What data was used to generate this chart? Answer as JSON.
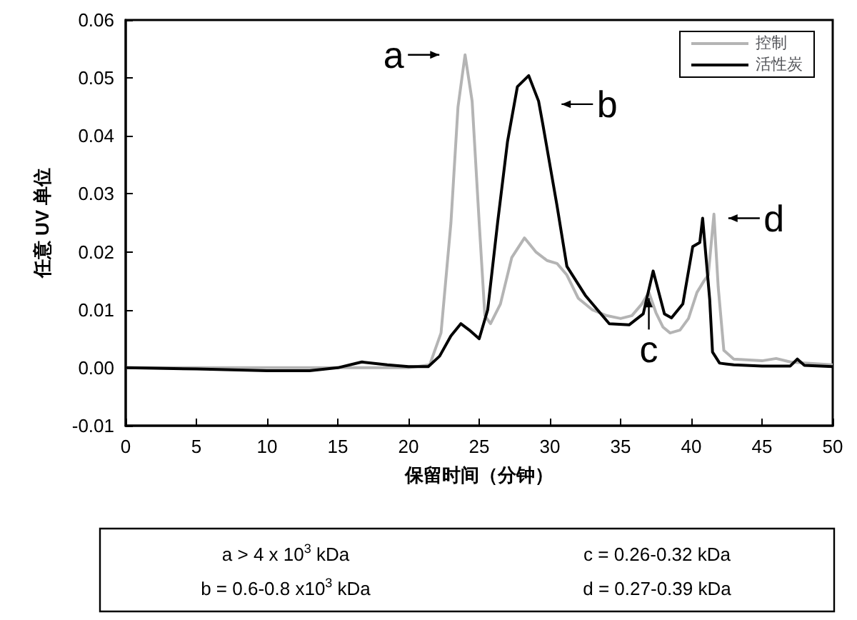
{
  "chart_data": {
    "type": "line",
    "xlabel": "保留时间（分钟）",
    "ylabel": "任意 UV 单位",
    "xlim": [
      0,
      50
    ],
    "xticks": [
      0,
      5,
      10,
      15,
      20,
      25,
      30,
      35,
      40,
      45,
      50
    ],
    "ylim": [
      -0.01,
      0.06
    ],
    "yticks": [
      {
        "value": -0.01,
        "label": "-0.01"
      },
      {
        "value": 0,
        "label": "0.00"
      },
      {
        "value": 0.01,
        "label": "0.01"
      },
      {
        "value": 0.02,
        "label": "0.02"
      },
      {
        "value": 0.03,
        "label": "0.03"
      },
      {
        "value": 0.04,
        "label": "0.04"
      },
      {
        "value": 0.05,
        "label": "0.05"
      },
      {
        "value": 0.06,
        "label": "0.06"
      }
    ],
    "grid": false,
    "legend": "top right",
    "marker": "none",
    "line_style": "solid",
    "series": [
      {
        "name": "控制",
        "color": "#b4b4b4",
        "x": [
          0,
          10,
          15,
          20,
          21.5,
          22.3,
          23,
          23.5,
          24,
          24.5,
          25,
          25.4,
          25.8,
          26.5,
          27.3,
          28.2,
          29,
          29.8,
          30.5,
          31.2,
          32,
          33,
          34,
          35,
          35.8,
          36.5,
          37,
          37.5,
          38,
          38.5,
          39.2,
          39.8,
          40.4,
          40.9,
          41.2,
          41.6,
          41.9,
          42.3,
          43,
          45,
          46,
          47,
          48,
          50
        ],
        "values": [
          0,
          0,
          0,
          0,
          0.0005,
          0.006,
          0.025,
          0.045,
          0.054,
          0.046,
          0.025,
          0.009,
          0.0076,
          0.011,
          0.019,
          0.0224,
          0.02,
          0.0185,
          0.018,
          0.016,
          0.012,
          0.01,
          0.009,
          0.0085,
          0.009,
          0.011,
          0.013,
          0.0095,
          0.007,
          0.006,
          0.0065,
          0.0085,
          0.013,
          0.015,
          0.016,
          0.0265,
          0.014,
          0.003,
          0.0015,
          0.0012,
          0.0016,
          0.001,
          0.0008,
          0.0005
        ]
      },
      {
        "name": "活性炭",
        "color": "#000000",
        "x": [
          0,
          5,
          10,
          13,
          15,
          16.7,
          18.5,
          20,
          21.4,
          22.2,
          23,
          23.7,
          24.3,
          25,
          25.6,
          26.3,
          27,
          27.7,
          28.5,
          29.2,
          29.5,
          30.5,
          31.2,
          32.5,
          34.2,
          35.6,
          36.6,
          37.3,
          38.1,
          38.6,
          39.4,
          40.1,
          40.6,
          40.8,
          41.3,
          41.5,
          42,
          43,
          45,
          47,
          47.5,
          48,
          50
        ],
        "values": [
          0,
          -0.0002,
          -0.0005,
          -0.0005,
          0,
          0.001,
          0.0005,
          0.0002,
          0.0002,
          0.002,
          0.0055,
          0.0076,
          0.0065,
          0.005,
          0.01,
          0.025,
          0.039,
          0.0485,
          0.0504,
          0.046,
          0.042,
          0.028,
          0.0175,
          0.0125,
          0.0076,
          0.0074,
          0.0093,
          0.0167,
          0.0093,
          0.0086,
          0.011,
          0.0209,
          0.0216,
          0.0258,
          0.0118,
          0.0027,
          0.0008,
          0.0005,
          0.0003,
          0.0003,
          0.0015,
          0.0004,
          0.0002
        ]
      }
    ],
    "annotations": [
      {
        "text": "a",
        "x": 24,
        "y": 0.054
      },
      {
        "text": "b",
        "x": 28.5,
        "y": 0.0504
      },
      {
        "text": "c",
        "x": 37.3,
        "y": 0.0167
      },
      {
        "text": "d",
        "x": 40.8,
        "y": 0.0258
      },
      "a > 4 x 10$^{3}$ kDa",
      "b = 0.6-0.8 x10$^{3}$ kDa",
      "c = 0.26-0.32 kDa",
      "d = 0.27-0.39 kDa"
    ]
  }
}
